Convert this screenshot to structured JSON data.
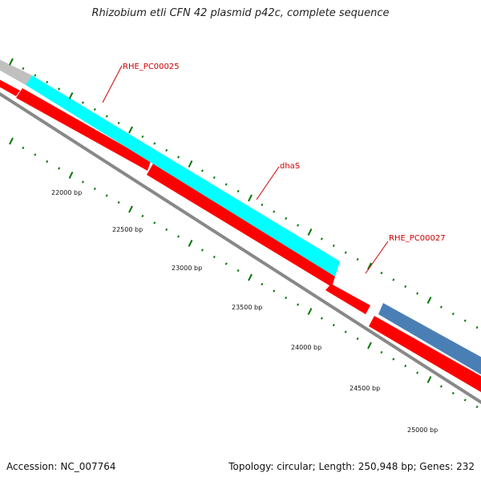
{
  "title": "Rhizobium etli CFN 42 plasmid p42c, complete sequence",
  "accession": {
    "label": "Accession:",
    "value": "NC_007764"
  },
  "summary": {
    "topology_label": "Topology:",
    "topology": "circular",
    "length_label": "Length:",
    "length": "250,948 bp",
    "genes_label": "Genes:",
    "genes": "232"
  },
  "ruler": {
    "labels": [
      "22000 bp",
      "22500 bp",
      "23000 bp",
      "23500 bp",
      "24000 bp",
      "24500 bp",
      "25000 bp"
    ]
  },
  "genes": [
    {
      "name": "RHE_PC00025",
      "track": "outer",
      "color": "#00ffff"
    },
    {
      "name": "dhaS",
      "track": "inner",
      "color": "#ff0000"
    },
    {
      "name": "RHE_PC00027",
      "track": "inner",
      "color": "#ff0000"
    },
    {
      "name": "",
      "track": "outer",
      "color": "#4a7fb5"
    },
    {
      "name": "",
      "track": "outer",
      "color": "#c0c0c0"
    }
  ],
  "colors": {
    "backbone": "#888888",
    "tick": "#0a7a0a",
    "label": "#cc0000",
    "cds_forward": "#00ffff",
    "cds_reverse": "#ff0000",
    "cds_other": "#4a7fb5",
    "cds_grey": "#c0c0c0"
  }
}
